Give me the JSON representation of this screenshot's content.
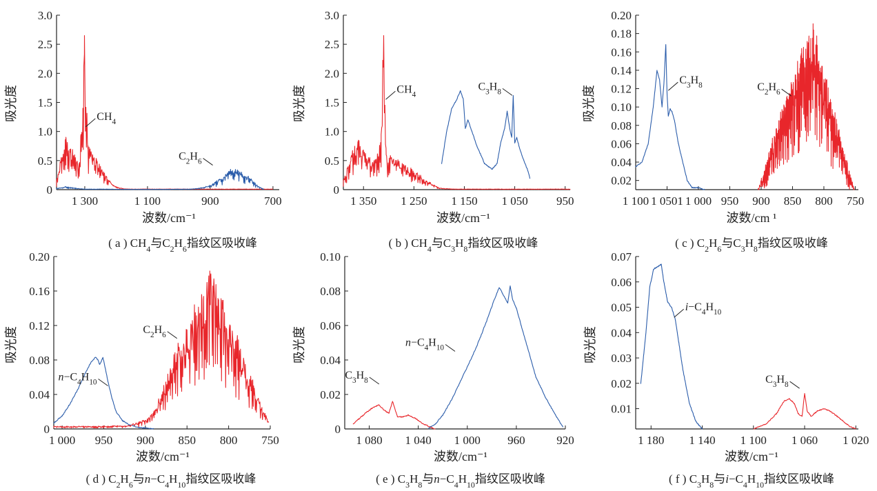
{
  "colors": {
    "ch4": "#e8262b",
    "c2h6": "#e8262b",
    "red": "#e8262b",
    "blue": "#2a5caa",
    "axis": "#222222"
  },
  "chart_data": [
    {
      "id": "a",
      "type": "line",
      "caption": [
        "( a ) CH",
        "4",
        "与C",
        "2",
        "H",
        "6",
        "指纹区吸收峰"
      ],
      "xlabel": "波数/cm⁻¹",
      "ylabel": "吸光度",
      "xlim": [
        1390,
        680
      ],
      "ylim": [
        0,
        3.0
      ],
      "xticks": [
        1300,
        1100,
        900,
        700
      ],
      "xtick_labels": [
        "1 300",
        "1 100",
        "900",
        "700"
      ],
      "yticks": [
        0,
        0.5,
        1.0,
        1.5,
        2.0,
        2.5,
        3.0
      ],
      "ytick_labels": [
        "0",
        "0.5",
        "1.0",
        "1.5",
        "2.0",
        "2.5",
        "3.0"
      ],
      "series": [
        {
          "color": "red",
          "kind": "spiky",
          "x": [
            1390,
            1375,
            1360,
            1345,
            1330,
            1318,
            1312,
            1306,
            1301,
            1290,
            1275,
            1262,
            1250,
            1240,
            1230,
            1220,
            1210,
            1195,
            1180,
            1160,
            1140,
            1100,
            1000,
            900,
            800,
            700
          ],
          "y": [
            0.15,
            0.55,
            0.9,
            0.7,
            0.55,
            0.45,
            0.95,
            1.4,
            2.65,
            0.7,
            0.6,
            0.5,
            0.4,
            0.3,
            0.22,
            0.15,
            0.08,
            0.04,
            0.02,
            0.01,
            0.01,
            0.01,
            0.01,
            0.01,
            0.01,
            0.01
          ]
        },
        {
          "color": "blue",
          "kind": "spiky",
          "x": [
            1390,
            1360,
            1320,
            1300,
            1250,
            1150,
            1050,
            960,
            920,
            890,
            870,
            850,
            835,
            820,
            800,
            780,
            760,
            745,
            730
          ],
          "y": [
            0.02,
            0.05,
            0.02,
            0.01,
            0.01,
            0.005,
            0.005,
            0.01,
            0.04,
            0.1,
            0.18,
            0.26,
            0.32,
            0.33,
            0.3,
            0.22,
            0.13,
            0.05,
            0.01
          ]
        }
      ],
      "annotations": [
        {
          "parts": [
            "CH",
            "4"
          ],
          "x": 1297,
          "y": 1.08
        },
        {
          "parts": [
            "C",
            "2",
            "H",
            "6"
          ],
          "x": 892,
          "y": 0.42
        }
      ]
    },
    {
      "id": "b",
      "type": "line",
      "caption": [
        "( b ) CH",
        "4",
        "与C",
        "3",
        "H",
        "8",
        "指纹区吸收峰"
      ],
      "xlabel": "波数/cm⁻¹",
      "ylabel": "吸光度",
      "xlim": [
        1390,
        940
      ],
      "ylim": [
        0,
        3.0
      ],
      "xticks": [
        1350,
        1250,
        1150,
        1050,
        950
      ],
      "xtick_labels": [
        "1 350",
        "1 250",
        "1 150",
        "1 050",
        "950"
      ],
      "yticks": [
        0,
        0.5,
        1.0,
        1.5,
        2.0,
        2.5,
        3.0
      ],
      "ytick_labels": [
        "0",
        "0.5",
        "1.0",
        "1.5",
        "2.0",
        "2.5",
        "3.0"
      ],
      "series": [
        {
          "color": "red",
          "kind": "spiky",
          "x": [
            1390,
            1375,
            1360,
            1350,
            1340,
            1330,
            1322,
            1315,
            1310,
            1305,
            1295,
            1285,
            1270,
            1255,
            1240,
            1225,
            1210,
            1200,
            1190,
            1170,
            1100,
            1000,
            940
          ],
          "y": [
            0.15,
            0.55,
            0.85,
            0.65,
            0.55,
            0.45,
            0.6,
            0.95,
            2.65,
            0.6,
            0.55,
            0.5,
            0.42,
            0.35,
            0.25,
            0.15,
            0.08,
            0.03,
            0.02,
            0.01,
            0.01,
            0.01,
            0.01
          ]
        },
        {
          "color": "blue",
          "kind": "smooth",
          "x": [
            1195,
            1185,
            1175,
            1165,
            1158,
            1152,
            1148,
            1143,
            1135,
            1125,
            1110,
            1095,
            1085,
            1078,
            1070,
            1065,
            1060,
            1056,
            1053,
            1050,
            1046,
            1040,
            1032,
            1025,
            1020
          ],
          "y": [
            0.45,
            1.0,
            1.4,
            1.55,
            1.7,
            1.55,
            1.05,
            1.2,
            1.0,
            0.75,
            0.45,
            0.35,
            0.45,
            0.8,
            1.05,
            1.35,
            1.05,
            0.9,
            1.62,
            0.8,
            0.9,
            0.7,
            0.5,
            0.35,
            0.2
          ]
        }
      ],
      "annotations": [
        {
          "parts": [
            "CH",
            "4"
          ],
          "x": 1306,
          "y": 1.55
        },
        {
          "parts": [
            "C",
            "3",
            "H",
            "8"
          ],
          "x": 1055,
          "y": 1.62
        }
      ]
    },
    {
      "id": "c",
      "type": "line",
      "caption": [
        "( c ) C",
        "2",
        "H",
        "6",
        "与C",
        "3",
        "H",
        "8",
        "指纹区吸收峰"
      ],
      "xlabel": "波数/cm ¹",
      "ylabel": "吸光度",
      "xlim": [
        1100,
        745
      ],
      "ylim": [
        0.01,
        0.2
      ],
      "xticks": [
        1100,
        1050,
        1000,
        950,
        900,
        850,
        800,
        750
      ],
      "xtick_labels": [
        "1 100",
        "1 0501",
        "1 000",
        "950",
        "900",
        "850",
        "800",
        "750"
      ],
      "yticks": [
        0.02,
        0.04,
        0.06,
        0.08,
        0.1,
        0.12,
        0.14,
        0.16,
        0.18,
        0.2
      ],
      "ytick_labels": [
        "0.02",
        "0.04",
        "0.06",
        "0.08",
        "0.10",
        "0.12",
        "0.14",
        "0.16",
        "0.18",
        "0.20"
      ],
      "series": [
        {
          "color": "blue",
          "kind": "smooth",
          "x": [
            1100,
            1090,
            1080,
            1072,
            1066,
            1062,
            1058,
            1055,
            1052,
            1050,
            1048,
            1045,
            1042,
            1038,
            1032,
            1025,
            1018,
            1010,
            1000,
            990
          ],
          "y": [
            0.035,
            0.04,
            0.06,
            0.1,
            0.14,
            0.13,
            0.1,
            0.125,
            0.168,
            0.115,
            0.09,
            0.098,
            0.095,
            0.085,
            0.06,
            0.04,
            0.02,
            0.012,
            0.012,
            0.01
          ]
        },
        {
          "color": "red",
          "kind": "spiky",
          "x": [
            905,
            895,
            885,
            870,
            855,
            845,
            835,
            825,
            818,
            812,
            808,
            800,
            790,
            780,
            770,
            760,
            752
          ],
          "y": [
            0.01,
            0.03,
            0.055,
            0.085,
            0.115,
            0.135,
            0.15,
            0.17,
            0.175,
            0.165,
            0.15,
            0.13,
            0.105,
            0.08,
            0.055,
            0.03,
            0.012
          ]
        }
      ],
      "annotations": [
        {
          "parts": [
            "C",
            "3",
            "H",
            "8"
          ],
          "x": 1048,
          "y": 0.118
        },
        {
          "parts": [
            "C",
            "2",
            "H",
            "6"
          ],
          "x": 852,
          "y": 0.112
        }
      ]
    },
    {
      "id": "d",
      "type": "line",
      "caption": [
        "( d ) C",
        "2",
        "H",
        "6",
        "与",
        "n",
        "−C",
        "4",
        "H",
        "10",
        "指纹区吸收峰"
      ],
      "xlabel": "波数/cm⁻¹",
      "ylabel": "吸光度",
      "xlim": [
        1010,
        750
      ],
      "ylim": [
        0,
        0.2
      ],
      "xticks": [
        1000,
        950,
        900,
        850,
        800,
        750
      ],
      "xtick_labels": [
        "1 000",
        "950",
        "900",
        "850",
        "800",
        "750"
      ],
      "yticks": [
        0,
        0.04,
        0.08,
        0.12,
        0.16,
        0.2
      ],
      "ytick_labels": [
        "0",
        "0.04",
        "0.08",
        "0.12",
        "0.16",
        "0.20"
      ],
      "series": [
        {
          "color": "blue",
          "kind": "smooth",
          "x": [
            1010,
            1000,
            990,
            980,
            972,
            965,
            960,
            957,
            955,
            953,
            951,
            948,
            945,
            940,
            935,
            928,
            920,
            910,
            900,
            890
          ],
          "y": [
            0.007,
            0.015,
            0.03,
            0.048,
            0.065,
            0.078,
            0.083,
            0.08,
            0.075,
            0.078,
            0.083,
            0.07,
            0.055,
            0.035,
            0.02,
            0.01,
            0.005,
            0.002,
            0.001,
            0.0
          ]
        },
        {
          "color": "red",
          "kind": "spiky",
          "x": [
            1010,
            960,
            920,
            900,
            890,
            880,
            870,
            860,
            850,
            840,
            832,
            826,
            822,
            818,
            812,
            805,
            798,
            790,
            780,
            770,
            760,
            752
          ],
          "y": [
            0.003,
            0.003,
            0.004,
            0.01,
            0.02,
            0.04,
            0.07,
            0.095,
            0.115,
            0.135,
            0.15,
            0.17,
            0.176,
            0.168,
            0.15,
            0.135,
            0.12,
            0.1,
            0.075,
            0.05,
            0.025,
            0.008
          ]
        }
      ],
      "annotations": [
        {
          "parts": [
            "n",
            "−C",
            "4",
            "H",
            "10"
          ],
          "x": 945,
          "y": 0.05
        },
        {
          "parts": [
            "C",
            "2",
            "H",
            "6"
          ],
          "x": 862,
          "y": 0.105
        }
      ]
    },
    {
      "id": "e",
      "type": "line",
      "caption": [
        "( e ) C",
        "3",
        "H",
        "8",
        "与",
        "n",
        "−C",
        "4",
        "H",
        "10",
        "指纹区吸收峰"
      ],
      "xlabel": "波数/cm⁻¹",
      "ylabel": "吸光度",
      "xlim": [
        1100,
        920
      ],
      "ylim": [
        0,
        0.1
      ],
      "xticks": [
        1080,
        1040,
        1000,
        960,
        920
      ],
      "xtick_labels": [
        "1 080",
        "1 040",
        "1 000",
        "960",
        "920"
      ],
      "yticks": [
        0,
        0.02,
        0.04,
        0.06,
        0.08,
        0.1
      ],
      "ytick_labels": [
        "0",
        "0.02",
        "0.04",
        "0.06",
        "0.08",
        "0.10"
      ],
      "series": [
        {
          "color": "red",
          "kind": "smooth",
          "x": [
            1093,
            1085,
            1078,
            1072,
            1068,
            1064,
            1061,
            1057,
            1053,
            1048,
            1042,
            1036,
            1030,
            1026
          ],
          "y": [
            0.003,
            0.008,
            0.012,
            0.014,
            0.011,
            0.009,
            0.016,
            0.007,
            0.007,
            0.008,
            0.006,
            0.003,
            0.001,
            0.0
          ]
        },
        {
          "color": "blue",
          "kind": "smooth",
          "x": [
            1032,
            1026,
            1020,
            1012,
            1004,
            996,
            990,
            984,
            978,
            974,
            970,
            967,
            965,
            963,
            960,
            956,
            950,
            944,
            936,
            928,
            922
          ],
          "y": [
            0.0,
            0.003,
            0.008,
            0.018,
            0.03,
            0.042,
            0.052,
            0.063,
            0.075,
            0.082,
            0.077,
            0.073,
            0.083,
            0.075,
            0.07,
            0.06,
            0.045,
            0.03,
            0.018,
            0.008,
            0.001
          ]
        }
      ],
      "annotations": [
        {
          "parts": [
            "C",
            "3",
            "H",
            "8"
          ],
          "x": 1072,
          "y": 0.026
        },
        {
          "parts": [
            "n",
            "−C",
            "4",
            "H",
            "10"
          ],
          "x": 1010,
          "y": 0.045
        }
      ]
    },
    {
      "id": "f",
      "type": "line",
      "caption": [
        "( f ) C",
        "3",
        "H",
        "8",
        "与",
        "i",
        "−C",
        "4",
        "H",
        "10",
        "指纹区吸收峰"
      ],
      "xlabel": "波数/cm⁻¹",
      "ylabel": "吸光度",
      "xlim": [
        1192,
        1018
      ],
      "ylim": [
        0.002,
        0.07
      ],
      "xticks": [
        1180,
        1140,
        1100,
        1060,
        1020
      ],
      "xtick_labels": [
        "1 180",
        "1 140",
        "1 100",
        "1 060",
        "1 020"
      ],
      "yticks": [
        0.01,
        0.02,
        0.03,
        0.04,
        0.05,
        0.06,
        0.07
      ],
      "ytick_labels": [
        "0.01",
        "0.02",
        "0.03",
        "0.04",
        "0.05",
        "0.06",
        "0.07"
      ],
      "series": [
        {
          "color": "blue",
          "kind": "smooth",
          "x": [
            1188,
            1184,
            1181,
            1178,
            1175,
            1172,
            1170,
            1167,
            1164,
            1161,
            1158,
            1155,
            1150,
            1145,
            1140
          ],
          "y": [
            0.02,
            0.04,
            0.058,
            0.065,
            0.066,
            0.067,
            0.06,
            0.052,
            0.05,
            0.045,
            0.035,
            0.025,
            0.012,
            0.005,
            0.002
          ]
        },
        {
          "color": "red",
          "kind": "smooth",
          "x": [
            1100,
            1090,
            1082,
            1076,
            1072,
            1068,
            1065,
            1062,
            1060,
            1058,
            1055,
            1050,
            1045,
            1040,
            1032,
            1025,
            1020
          ],
          "y": [
            0.002,
            0.004,
            0.008,
            0.013,
            0.014,
            0.012,
            0.008,
            0.007,
            0.016,
            0.009,
            0.007,
            0.009,
            0.01,
            0.009,
            0.006,
            0.003,
            0.002
          ]
        }
      ],
      "annotations": [
        {
          "parts": [
            "i",
            "−C",
            "4",
            "H",
            "10"
          ],
          "x": 1162,
          "y": 0.046
        },
        {
          "parts": [
            "C",
            "3",
            "H",
            "8"
          ],
          "x": 1064,
          "y": 0.018
        }
      ]
    }
  ]
}
